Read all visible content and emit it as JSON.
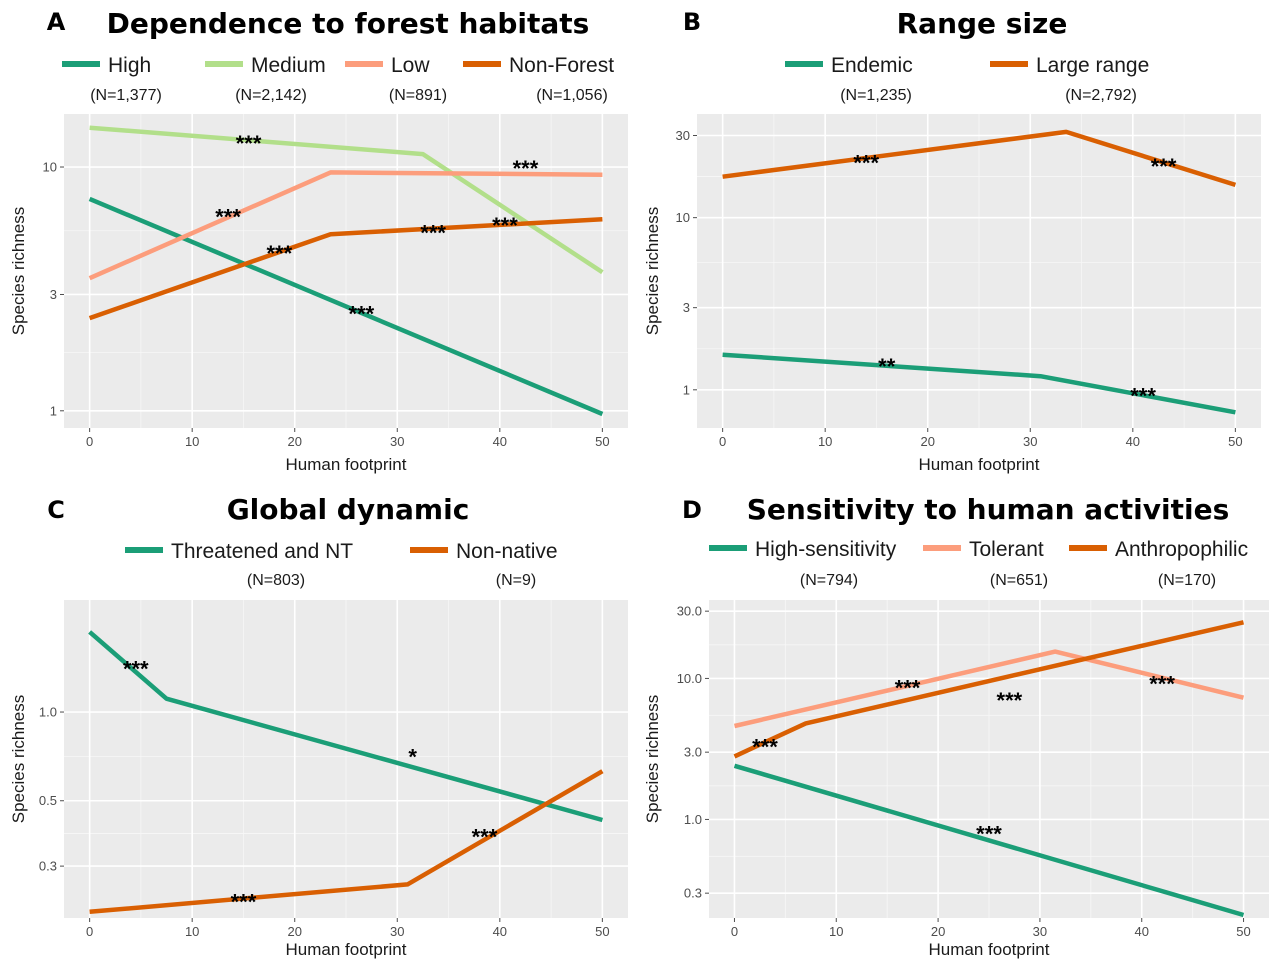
{
  "chart_data": [
    {
      "letter": "A",
      "title": "Dependence to forest habitats",
      "type": "line",
      "xlabel": "Human footprint",
      "ylabel": "Species richness",
      "xlim": [
        -2.5,
        52.5
      ],
      "ylim": [
        0.85,
        16.5
      ],
      "yscale": "log",
      "xticks": [
        0,
        10,
        20,
        30,
        40,
        50
      ],
      "yticks": [
        1,
        3,
        10
      ],
      "yticklabels": [
        "1",
        "3",
        "10"
      ],
      "grid": true,
      "legend_position": "top",
      "series": [
        {
          "name": "High",
          "n_label": "(N=1,377)",
          "color": "#1b9e77",
          "x": [
            0,
            50
          ],
          "y": [
            7.4,
            0.97
          ]
        },
        {
          "name": "Medium",
          "n_label": "(N=2,142)",
          "color": "#b2df8a",
          "x": [
            0,
            32.5,
            50
          ],
          "y": [
            14.5,
            11.3,
            3.7
          ]
        },
        {
          "name": "Low",
          "n_label": "(N=891)",
          "color": "#fc9d7c",
          "x": [
            0,
            23.5,
            50
          ],
          "y": [
            3.5,
            9.5,
            9.3
          ]
        },
        {
          "name": "Non-Forest",
          "n_label": "(N=1,056)",
          "color": "#d95f02",
          "x": [
            0,
            23.5,
            50
          ],
          "y": [
            2.4,
            5.3,
            6.1
          ]
        }
      ],
      "annotations": [
        {
          "text": "***",
          "x": 15.5,
          "y": 13.0
        },
        {
          "text": "***",
          "x": 42.5,
          "y": 10.3
        },
        {
          "text": "***",
          "x": 13.5,
          "y": 6.5
        },
        {
          "text": "***",
          "x": 40.5,
          "y": 6.0
        },
        {
          "text": "***",
          "x": 33.5,
          "y": 5.6
        },
        {
          "text": "***",
          "x": 18.5,
          "y": 4.6
        },
        {
          "text": "***",
          "x": 26.5,
          "y": 2.6
        }
      ]
    },
    {
      "letter": "B",
      "title": "Range size",
      "type": "line",
      "xlabel": "Human footprint",
      "ylabel": "Species richness",
      "xlim": [
        -2.5,
        52.5
      ],
      "ylim": [
        0.6,
        40
      ],
      "yscale": "log",
      "xticks": [
        0,
        10,
        20,
        30,
        40,
        50
      ],
      "yticks": [
        1,
        3,
        10,
        30
      ],
      "yticklabels": [
        "1",
        "3",
        "10",
        "30"
      ],
      "grid": true,
      "legend_position": "top",
      "series": [
        {
          "name": "Endemic",
          "n_label": "(N=1,235)",
          "color": "#1b9e77",
          "x": [
            0,
            31,
            50
          ],
          "y": [
            1.6,
            1.2,
            0.74
          ]
        },
        {
          "name": "Large range",
          "n_label": "(N=2,792)",
          "color": "#d95f02",
          "x": [
            0,
            33.5,
            50
          ],
          "y": [
            17.3,
            31.5,
            15.5
          ]
        }
      ],
      "annotations": [
        {
          "text": "***",
          "x": 14,
          "y": 22
        },
        {
          "text": "***",
          "x": 43,
          "y": 21
        },
        {
          "text": "**",
          "x": 16,
          "y": 1.45
        },
        {
          "text": "***",
          "x": 41,
          "y": 0.98
        }
      ]
    },
    {
      "letter": "C",
      "title": "Global dynamic",
      "type": "line",
      "xlabel": "Human footprint",
      "ylabel": "Species richness",
      "xlim": [
        -2.5,
        52.5
      ],
      "ylim": [
        0.2,
        2.4
      ],
      "yscale": "log",
      "xticks": [
        0,
        10,
        20,
        30,
        40,
        50
      ],
      "yticks": [
        0.3,
        0.5,
        1.0
      ],
      "yticklabels": [
        "0.3",
        "0.5",
        "1.0"
      ],
      "grid": true,
      "legend_position": "top",
      "series": [
        {
          "name": "Threatened and NT",
          "n_label": "(N=803)",
          "color": "#1b9e77",
          "x": [
            0,
            7.5,
            50
          ],
          "y": [
            1.87,
            1.11,
            0.43
          ]
        },
        {
          "name": "Non-native",
          "n_label": "(N=9)",
          "color": "#d95f02",
          "x": [
            0,
            31,
            50
          ],
          "y": [
            0.21,
            0.26,
            0.63
          ]
        }
      ],
      "annotations": [
        {
          "text": "***",
          "x": 4.5,
          "y": 1.45
        },
        {
          "text": "*",
          "x": 31.5,
          "y": 0.73
        },
        {
          "text": "***",
          "x": 38.5,
          "y": 0.39
        },
        {
          "text": "***",
          "x": 15,
          "y": 0.235
        }
      ]
    },
    {
      "letter": "D",
      "title": "Sensitivity to human activities",
      "type": "line",
      "xlabel": "Human footprint",
      "ylabel": "Species richness",
      "xlim": [
        -2.5,
        52.5
      ],
      "ylim": [
        0.2,
        36
      ],
      "yscale": "log",
      "xticks": [
        0,
        10,
        20,
        30,
        40,
        50
      ],
      "yticks": [
        0.3,
        1.0,
        3.0,
        10.0,
        30.0
      ],
      "yticklabels": [
        "0.3",
        "1.0",
        "3.0",
        "10.0",
        "30.0"
      ],
      "grid": true,
      "legend_position": "top",
      "series": [
        {
          "name": "High-sensitivity",
          "n_label": "(N=794)",
          "color": "#1b9e77",
          "x": [
            0,
            50
          ],
          "y": [
            2.4,
            0.21
          ]
        },
        {
          "name": "Tolerant",
          "n_label": "(N=651)",
          "color": "#fc9d7c",
          "x": [
            0,
            31.5,
            50
          ],
          "y": [
            4.6,
            15.5,
            7.3
          ]
        },
        {
          "name": "Anthropophilic",
          "n_label": "(N=170)",
          "color": "#d95f02",
          "x": [
            0,
            7,
            50
          ],
          "y": [
            2.8,
            4.8,
            25.0
          ]
        }
      ],
      "annotations": [
        {
          "text": "***",
          "x": 3,
          "y": 3.5
        },
        {
          "text": "***",
          "x": 17,
          "y": 9.2
        },
        {
          "text": "***",
          "x": 27,
          "y": 7.5
        },
        {
          "text": "***",
          "x": 42,
          "y": 9.8
        },
        {
          "text": "***",
          "x": 25,
          "y": 0.85
        }
      ]
    }
  ]
}
